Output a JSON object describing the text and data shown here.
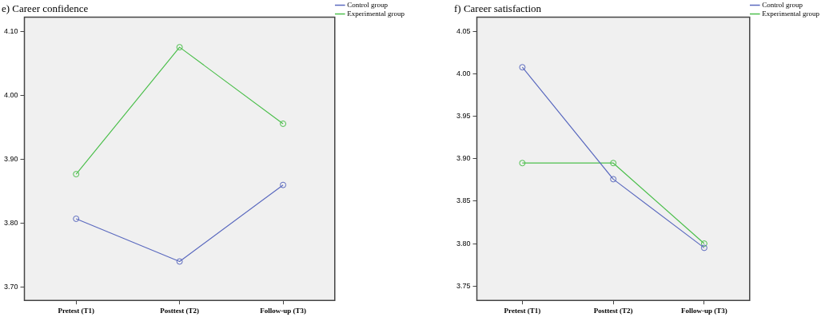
{
  "chart_data": [
    {
      "type": "line",
      "title": "e) Career confidence",
      "categories": [
        "Pretest (T1)",
        "Posttest (T2)",
        "Follow-up (T3)"
      ],
      "series": [
        {
          "name": "Control group",
          "color": "#5b6abf",
          "values": [
            3.807,
            3.74,
            3.86
          ]
        },
        {
          "name": "Experimental group",
          "color": "#4cbf4c",
          "values": [
            3.877,
            4.076,
            3.956
          ]
        }
      ],
      "ylim": [
        3.679,
        4.123
      ],
      "yticks": [
        {
          "value": 3.7,
          "label": "3.70"
        },
        {
          "value": 3.8,
          "label": "3.80"
        },
        {
          "value": 3.9,
          "label": "3.90"
        },
        {
          "value": 4.0,
          "label": "4.00"
        },
        {
          "value": 4.1,
          "label": "4.10"
        }
      ],
      "grid": false,
      "legend": "top right",
      "marker": "circle",
      "line_style": "solid"
    },
    {
      "type": "line",
      "title": "f) Career satisfaction",
      "categories": [
        "Pretest (T1)",
        "Posttest (T2)",
        "Follow-up (T3)"
      ],
      "series": [
        {
          "name": "Control group",
          "color": "#5b6abf",
          "values": [
            4.008,
            3.876,
            3.795
          ]
        },
        {
          "name": "Experimental group",
          "color": "#4cbf4c",
          "values": [
            3.895,
            3.895,
            3.8
          ]
        }
      ],
      "ylim": [
        3.733,
        4.067
      ],
      "yticks": [
        {
          "value": 3.75,
          "label": "3.75"
        },
        {
          "value": 3.8,
          "label": "3.80"
        },
        {
          "value": 3.85,
          "label": "3.85"
        },
        {
          "value": 3.9,
          "label": "3.90"
        },
        {
          "value": 3.95,
          "label": "3.95"
        },
        {
          "value": 4.0,
          "label": "4.00"
        },
        {
          "value": 4.05,
          "label": "4.05"
        }
      ],
      "grid": false,
      "legend": "top right",
      "marker": "circle",
      "line_style": "solid"
    }
  ]
}
